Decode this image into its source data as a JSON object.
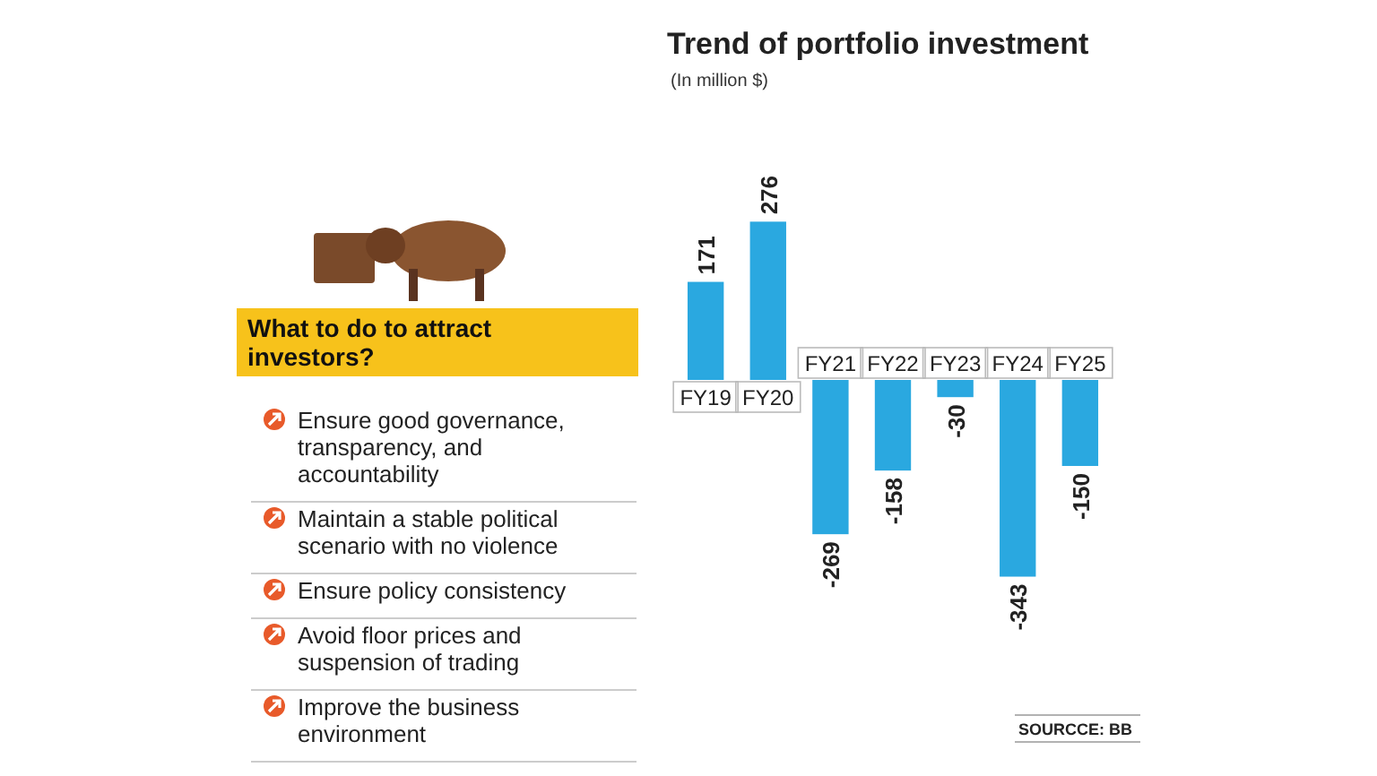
{
  "chart_data": [
    {
      "type": "bar",
      "title": "Trend of portfolio investment",
      "subtitle": "(In million $)",
      "categories": [
        "FY19",
        "FY20",
        "FY21",
        "FY22",
        "FY23",
        "FY24",
        "FY25"
      ],
      "values": [
        171,
        276,
        -269,
        -158,
        -30,
        -343,
        -150
      ],
      "color": "#2aa8e0",
      "data_labels": true,
      "annotations": [
        "SOURCCE: BB"
      ]
    },
    {
      "type": "other",
      "title": "What to do to attract investors?",
      "annotations": [
        "Ensure good governance, transparency, and accountability",
        "Maintain a stable political scenario with no violence",
        "Ensure policy consistency",
        "Avoid floor prices and suspension of trading",
        "Improve the business environment"
      ]
    }
  ]
}
